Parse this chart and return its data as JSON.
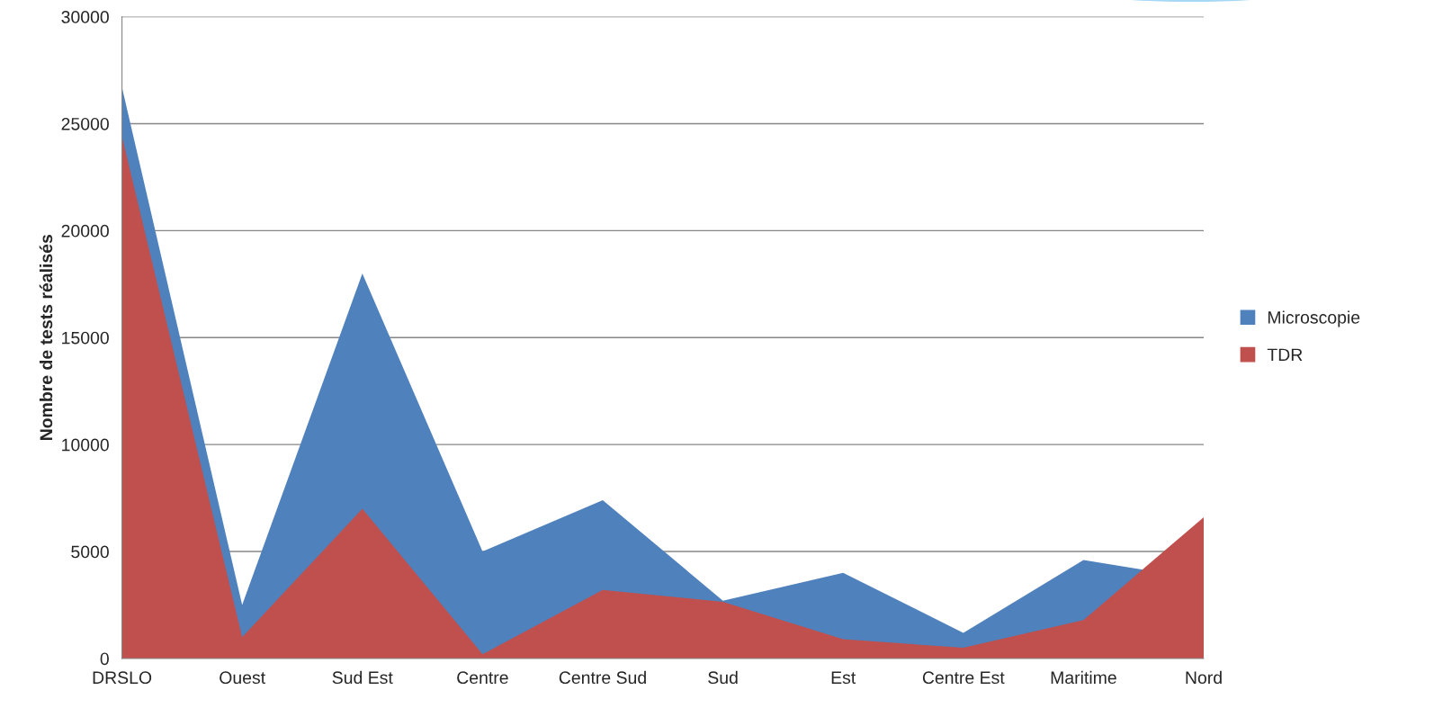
{
  "chart_data": {
    "type": "area",
    "ylabel": "Nombre de tests réalisés",
    "categories": [
      "DRSLO",
      "Ouest",
      "Sud Est",
      "Centre",
      "Centre Sud",
      "Sud",
      "Est",
      "Centre Est",
      "Maritime",
      "Nord"
    ],
    "series": [
      {
        "name": "Microscopie",
        "color": "#4f81bd",
        "values": [
          26700,
          2500,
          18000,
          5000,
          7400,
          2700,
          4000,
          1200,
          4600,
          3700
        ]
      },
      {
        "name": "TDR",
        "color": "#c0504d",
        "values": [
          24400,
          1000,
          7000,
          200,
          3200,
          2650,
          900,
          500,
          1800,
          6600
        ]
      }
    ],
    "ylim": [
      0,
      30000
    ],
    "yticks": [
      0,
      5000,
      10000,
      15000,
      20000,
      25000,
      30000
    ],
    "grid": "y",
    "legend": "right"
  }
}
